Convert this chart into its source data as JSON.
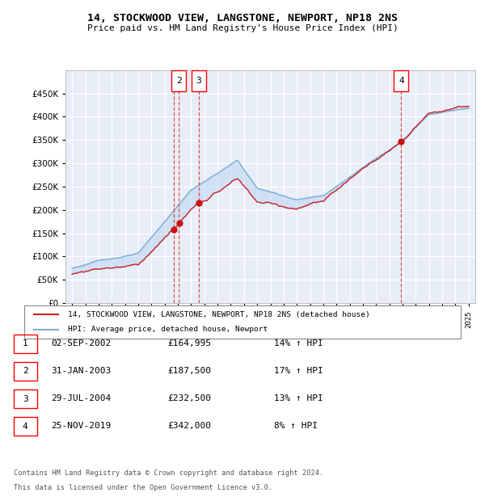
{
  "title": "14, STOCKWOOD VIEW, LANGSTONE, NEWPORT, NP18 2NS",
  "subtitle": "Price paid vs. HM Land Registry's House Price Index (HPI)",
  "legend_line1": "14, STOCKWOOD VIEW, LANGSTONE, NEWPORT, NP18 2NS (detached house)",
  "legend_line2": "HPI: Average price, detached house, Newport",
  "transactions": [
    {
      "num": 1,
      "date": "02-SEP-2002",
      "price": 164995,
      "pct": "14% ↑ HPI",
      "year": 2002.67
    },
    {
      "num": 2,
      "date": "31-JAN-2003",
      "price": 187500,
      "pct": "17% ↑ HPI",
      "year": 2003.08
    },
    {
      "num": 3,
      "date": "29-JUL-2004",
      "price": 232500,
      "pct": "13% ↑ HPI",
      "year": 2004.57
    },
    {
      "num": 4,
      "date": "25-NOV-2019",
      "price": 342000,
      "pct": "8% ↑ HPI",
      "year": 2019.9
    }
  ],
  "footer1": "Contains HM Land Registry data © Crown copyright and database right 2024.",
  "footer2": "This data is licensed under the Open Government Licence v3.0.",
  "hpi_color": "#7dadd4",
  "price_color": "#cc2222",
  "dot_color": "#cc1111",
  "fill_color": "#aaccee",
  "background_chart": "#e8eef8",
  "background_fig": "#ffffff",
  "grid_color": "#ffffff",
  "vline_color": "#dd3333",
  "ylim": [
    0,
    500000
  ],
  "xlim_start": 1994.5,
  "xlim_end": 2025.5,
  "show_markers": [
    2,
    3,
    4
  ]
}
